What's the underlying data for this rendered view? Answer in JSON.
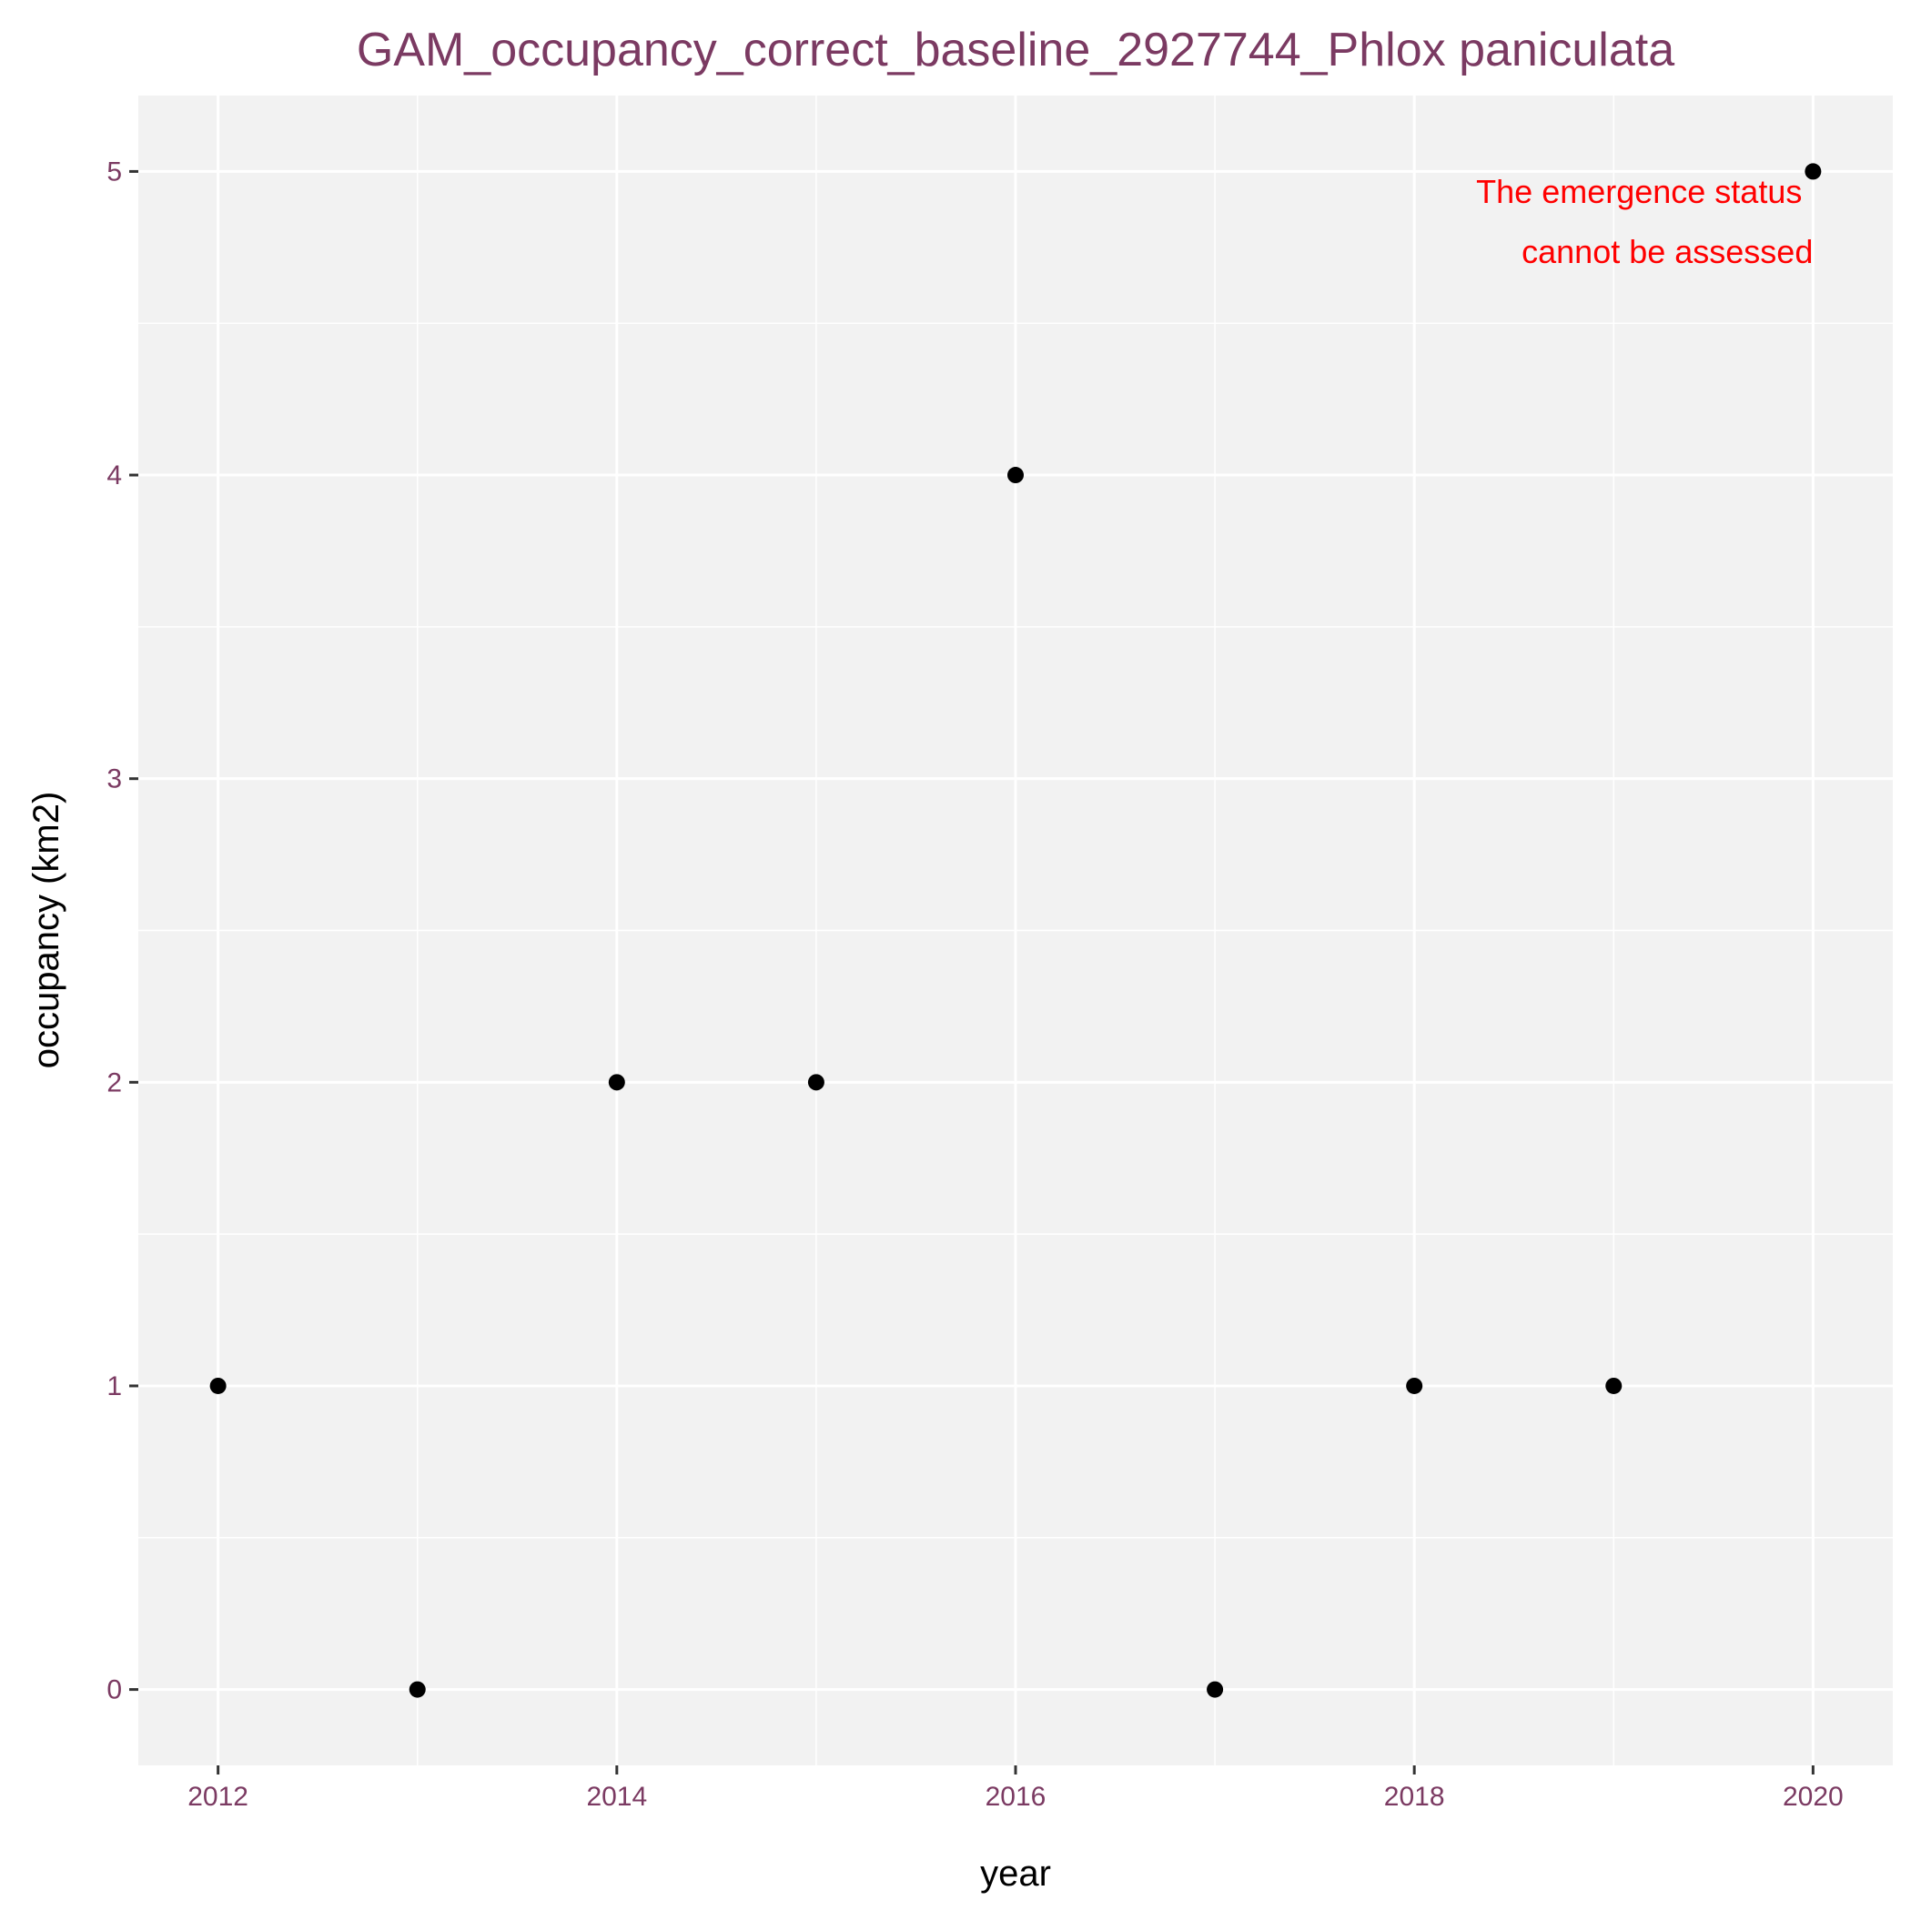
{
  "chart_data": {
    "type": "scatter",
    "title": "GAM_occupancy_correct_baseline_2927744_Phlox paniculata",
    "xlabel": "year",
    "ylabel": "occupancy (km2)",
    "x": [
      2012,
      2013,
      2014,
      2015,
      2016,
      2017,
      2018,
      2019,
      2020
    ],
    "y": [
      1,
      0,
      2,
      2,
      4,
      0,
      1,
      1,
      5
    ],
    "xlim": [
      2011.6,
      2020.4
    ],
    "ylim": [
      -0.25,
      5.25
    ],
    "xticks": [
      2012,
      2014,
      2016,
      2018,
      2020
    ],
    "xtick_labels": [
      "2012",
      "2014",
      "2016",
      "2018",
      "2020"
    ],
    "yticks": [
      0,
      1,
      2,
      3,
      4,
      5
    ],
    "ytick_labels": [
      "0",
      "1",
      "2",
      "3",
      "4",
      "5"
    ],
    "grid": true,
    "annotation": {
      "lines": [
        "The emergence status",
        "cannot be assessed"
      ],
      "x": 2020,
      "y": 4.8,
      "color": "#ff0000"
    },
    "colors": {
      "panel": "#f2f2f2",
      "grid": "#ffffff",
      "points": "#000000",
      "title": "#7b3a62",
      "tick_labels": "#7b3a62"
    }
  }
}
